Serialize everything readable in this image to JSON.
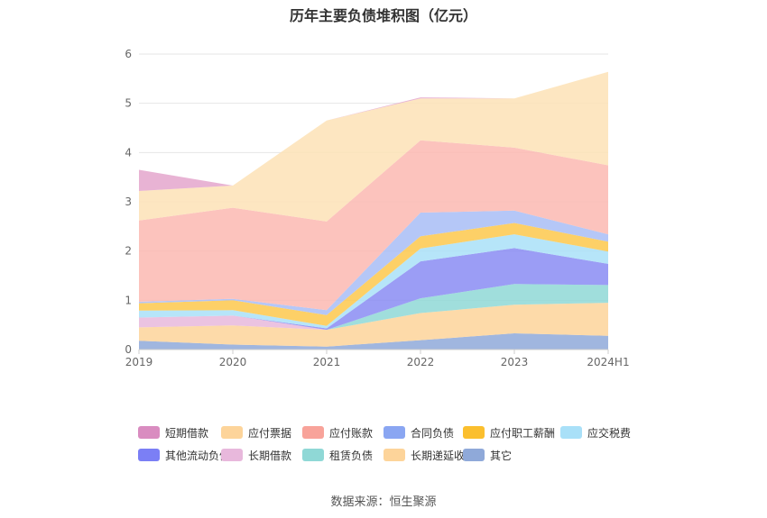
{
  "chart_data": {
    "type": "area",
    "title": "历年主要负债堆积图（亿元）",
    "categories": [
      "2019",
      "2020",
      "2021",
      "2022",
      "2023",
      "2024H1"
    ],
    "y_ticks": [
      "0",
      "1",
      "2",
      "3",
      "4",
      "5",
      "6"
    ],
    "ylim": [
      0,
      6
    ],
    "stacked": true,
    "series": [
      {
        "name": "其它",
        "color": "#8fa9d9",
        "values": [
          0.18,
          0.1,
          0.06,
          0.19,
          0.33,
          0.28
        ]
      },
      {
        "name": "长期递延收益",
        "color": "#fdd49a",
        "values": [
          0.27,
          0.39,
          0.34,
          0.55,
          0.58,
          0.67
        ]
      },
      {
        "name": "租赁负债",
        "color": "#8fd8d6",
        "values": [
          0.0,
          0.0,
          0.0,
          0.3,
          0.42,
          0.36
        ]
      },
      {
        "name": "长期借款",
        "color": "#e8b8dc",
        "values": [
          0.2,
          0.2,
          0.0,
          0.0,
          0.0,
          0.0
        ]
      },
      {
        "name": "其他流动负债",
        "color": "#8a8cf3",
        "values": [
          0.0,
          0.0,
          0.03,
          0.75,
          0.73,
          0.43
        ]
      },
      {
        "name": "应交税费",
        "color": "#a9e0f8",
        "values": [
          0.14,
          0.11,
          0.05,
          0.26,
          0.28,
          0.25
        ]
      },
      {
        "name": "应付职工薪酬",
        "color": "#fdc84c",
        "values": [
          0.15,
          0.2,
          0.22,
          0.25,
          0.23,
          0.2
        ]
      },
      {
        "name": "合同负债",
        "color": "#a8bdf6",
        "values": [
          0.03,
          0.03,
          0.1,
          0.48,
          0.25,
          0.15
        ]
      },
      {
        "name": "应付账款",
        "color": "#fbb9b2",
        "values": [
          1.65,
          1.85,
          1.8,
          1.47,
          1.28,
          1.4
        ]
      },
      {
        "name": "应付票据",
        "color": "#fde2b6",
        "values": [
          0.6,
          0.45,
          2.05,
          0.85,
          1.0,
          1.9
        ]
      },
      {
        "name": "短期借款",
        "color": "#e4a6cd",
        "values": [
          0.43,
          0.0,
          0.0,
          0.02,
          0.0,
          0.0
        ]
      }
    ]
  },
  "legend": [
    {
      "label": "短期借款",
      "color": "#d98cc0"
    },
    {
      "label": "应付票据",
      "color": "#fdd49a"
    },
    {
      "label": "应付账款",
      "color": "#f8a39a"
    },
    {
      "label": "合同负债",
      "color": "#8aa6f2"
    },
    {
      "label": "应付职工薪酬",
      "color": "#fbbf2e"
    },
    {
      "label": "应交税费",
      "color": "#a9e0f8"
    },
    {
      "label": "其他流动负债",
      "color": "#7b7ff5"
    },
    {
      "label": "长期借款",
      "color": "#e8b8dc"
    },
    {
      "label": "租赁负债",
      "color": "#8fd8d6"
    },
    {
      "label": "长期递延收益",
      "color": "#fdd49a"
    },
    {
      "label": "其它",
      "color": "#8fa9d9"
    }
  ],
  "source": "数据来源：恒生聚源"
}
